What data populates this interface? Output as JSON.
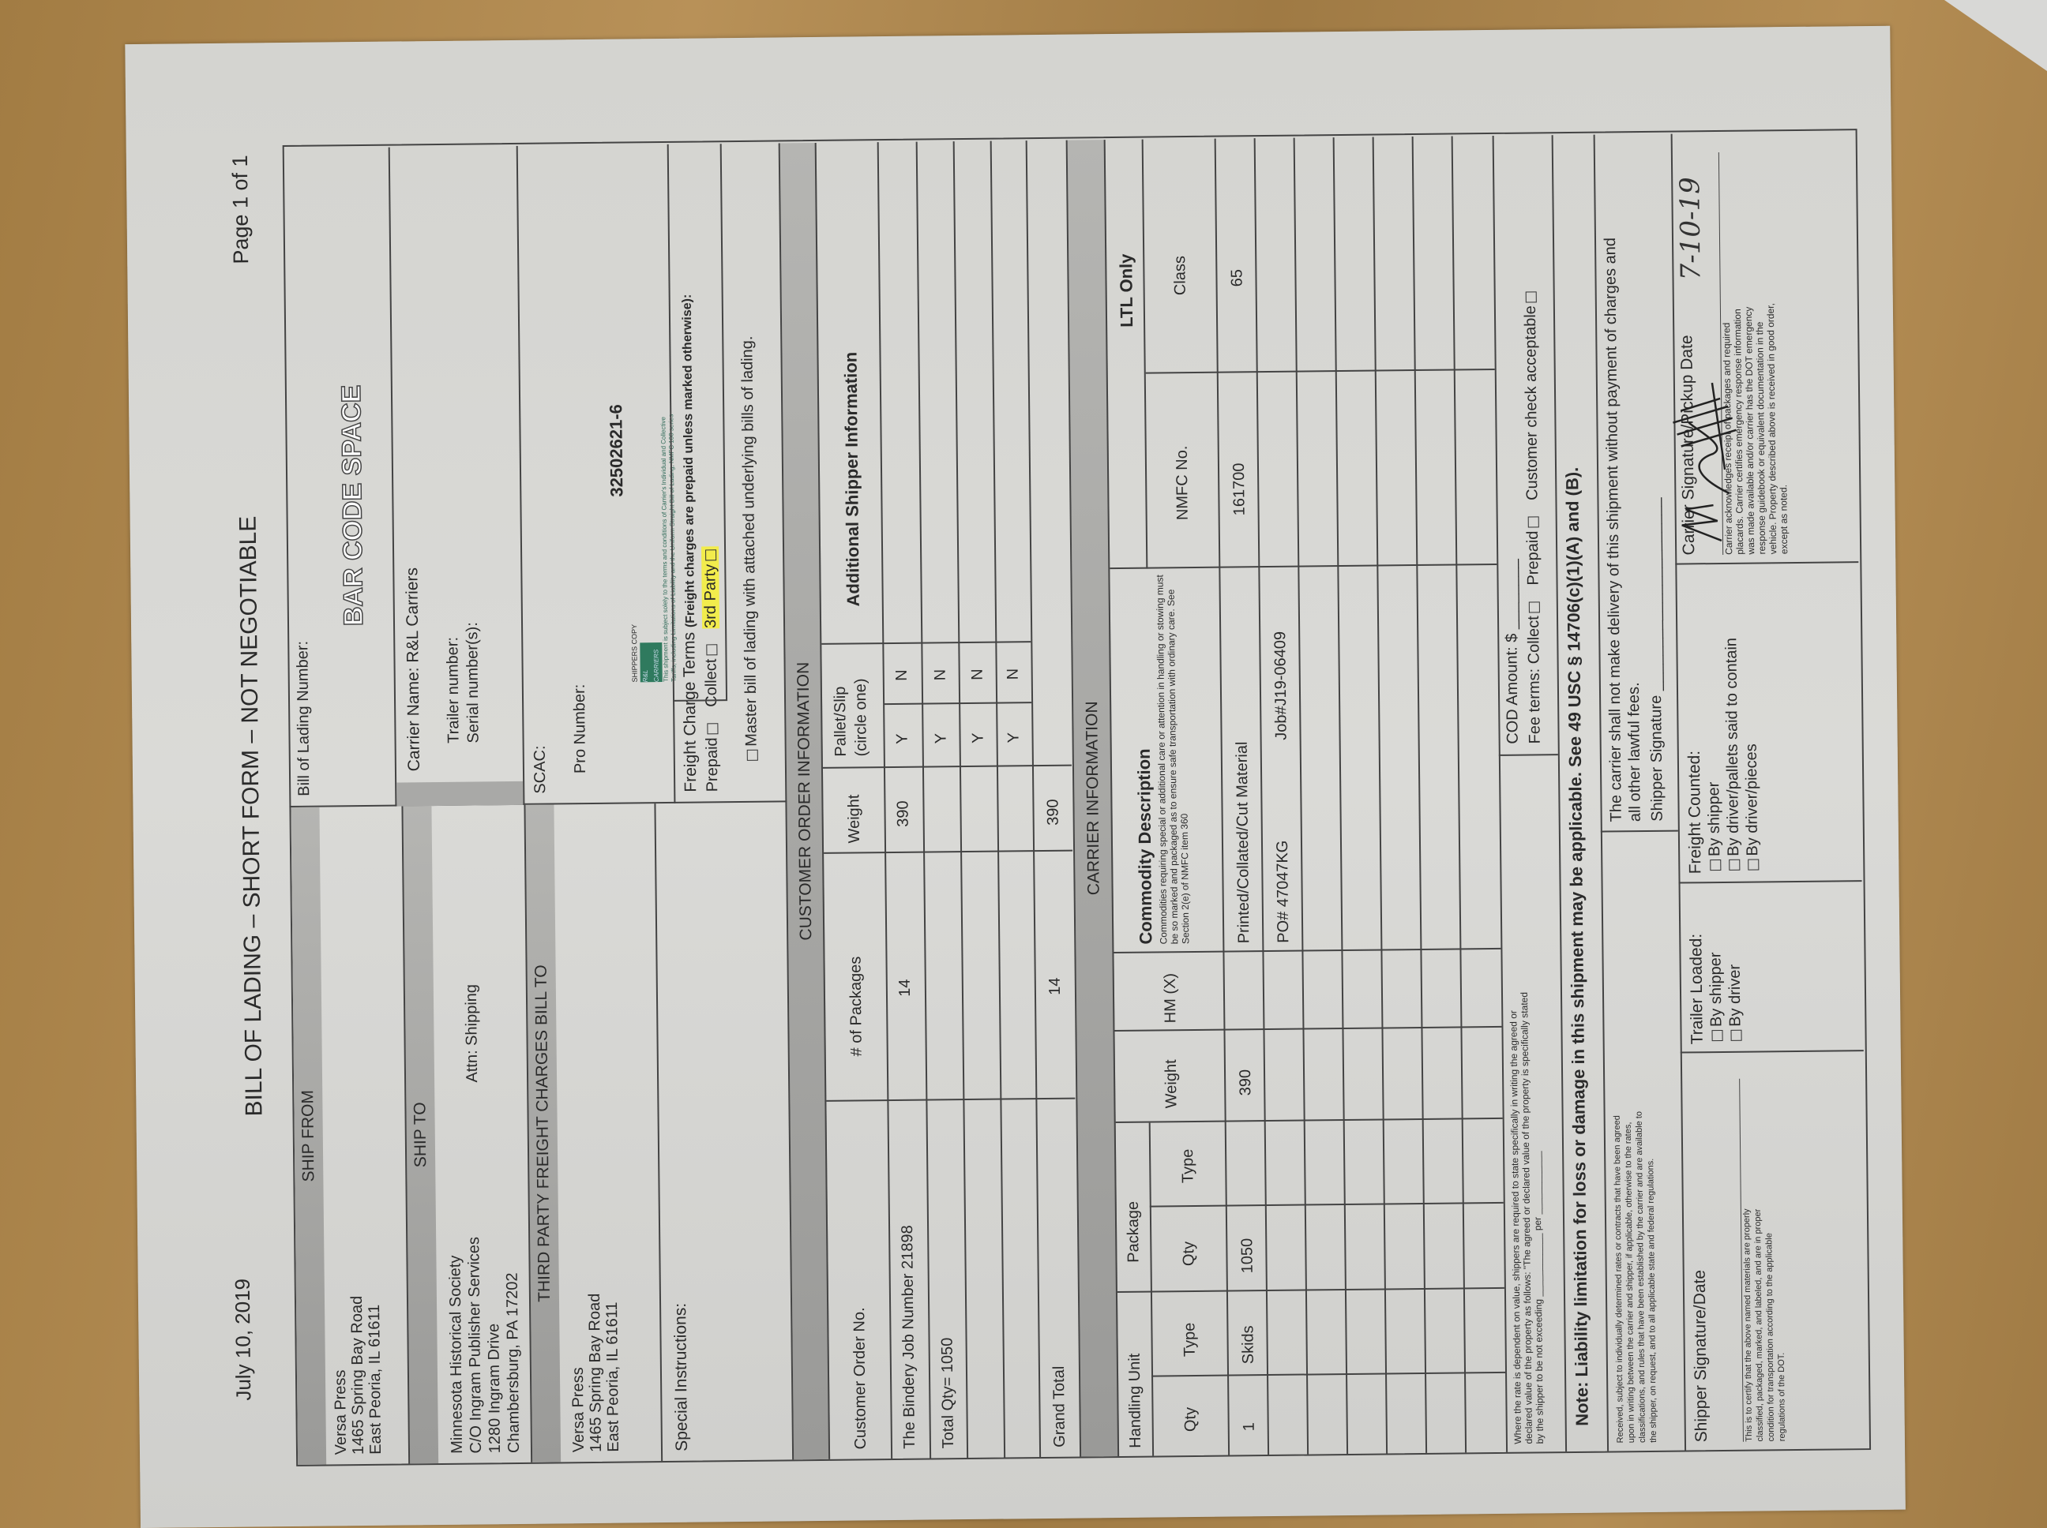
{
  "header": {
    "date": "July 10, 2019",
    "title": "BILL OF LADING – SHORT FORM – NOT NEGOTIABLE",
    "page": "Page 1 of 1"
  },
  "ship_from": {
    "label": "SHIP FROM",
    "lines": [
      "Versa Press",
      "1465 Spring Bay Road",
      "East Peoria, IL 61611"
    ]
  },
  "ship_to": {
    "label": "SHIP TO",
    "lines": [
      "Minnesota Historical Society",
      "C/O Ingram Publisher Services",
      "1280 Ingram Drive",
      "Chambersburg, PA 17202"
    ],
    "attn": "Attn: Shipping"
  },
  "third_party": {
    "label": "THIRD PARTY FREIGHT CHARGES BILL TO",
    "lines": [
      "Versa Press",
      "1465 Spring Bay Road",
      "East Peoria, IL 61611"
    ]
  },
  "special_instructions": {
    "label": "Special Instructions:"
  },
  "bol": {
    "label": "Bill of Lading Number:",
    "barcode": "BAR CODE SPACE"
  },
  "carrier": {
    "name_label": "Carrier Name: R&L Carriers",
    "trailer": "Trailer number:",
    "serial": "Serial number(s):"
  },
  "scac": {
    "label": "SCAC:",
    "pro_label": "Pro Number:",
    "pro_number": "32502621-6",
    "stamp": {
      "copy": "SHIPPERS COPY",
      "brand": "R&L CARRIERS",
      "line1": "This shipment is subject solely to the terms and conditions of Carrier's Individual and Collective",
      "line2": "Tariffs, including Limitations of Liability and the Uniform Straight Bill of Lading, NMFC 100 series"
    }
  },
  "freight_terms": {
    "label": "Freight Charge Terms",
    "note": "(Freight charges are prepaid unless marked otherwise):",
    "prepaid": "Prepaid",
    "collect": "Collect",
    "third": "3rd Party",
    "master": "Master bill of lading with attached underlying bills of lading."
  },
  "customer_order": {
    "title": "CUSTOMER ORDER INFORMATION",
    "columns": [
      "Customer Order No.",
      "# of Packages",
      "Weight",
      "Pallet/Slip",
      "(circle one)",
      "Additional Shipper Information"
    ],
    "rows": [
      {
        "order": "The Bindery Job Number 21898",
        "packages": "14",
        "weight": "390",
        "y": "Y",
        "n": "N"
      },
      {
        "order": "Total Qty= 1050",
        "packages": "",
        "weight": "",
        "y": "Y",
        "n": "N"
      },
      {
        "order": "",
        "packages": "",
        "weight": "",
        "y": "Y",
        "n": "N"
      },
      {
        "order": "",
        "packages": "",
        "weight": "",
        "y": "Y",
        "n": "N"
      }
    ],
    "grand_total": {
      "label": "Grand Total",
      "packages": "14",
      "weight": "390"
    }
  },
  "carrier_info": {
    "title": "CARRIER INFORMATION",
    "handling_unit": "Handling Unit",
    "package": "Package",
    "qty": "Qty",
    "type": "Type",
    "weight": "Weight",
    "hm": "HM (X)",
    "commodity": "Commodity Description",
    "commodity_note": "Commodities requiring special or additional care or attention in handling or stowing must be so marked and packaged as to ensure safe transportation with ordinary care. See Section 2(e) of NMFC item 360",
    "ltl": "LTL Only",
    "nmfc": "NMFC No.",
    "class": "Class",
    "row": {
      "hu_qty": "1",
      "hu_type": "Skids",
      "pkg_qty": "1050",
      "weight": "390",
      "desc": "Printed/Collated/Cut Material",
      "po": "PO# 47047KG",
      "job": "Job#J19-06409",
      "nmfc": "161700",
      "class": "65"
    }
  },
  "value_note": {
    "text1": "Where the rate is dependent on value, shippers are required to state specifically in writing the agreed or",
    "text2": "declared value of the property as follows: \"The agreed or declared value of the property is specifically stated",
    "text3": "by the shipper to be not exceeding",
    "per": "per"
  },
  "cod": {
    "amount": "COD Amount: $",
    "fee": "Fee terms: Collect",
    "prepaid": "Prepaid",
    "check": "Customer check acceptable"
  },
  "liability": "Note: Liability limitation for loss or damage in this shipment may be applicable. See 49 USC § 14706(c)(1)(A) and (B).",
  "received": {
    "lines": [
      "Received, subject to individually determined rates or contracts that have been agreed",
      "upon in writing between the carrier and shipper, if applicable, otherwise to the rates,",
      "classifications, and rules that have been established by the carrier and are available to",
      "the shipper, on request, and to all applicable state and federal regulations."
    ]
  },
  "delivery": {
    "line1": "The carrier shall not make delivery of this shipment without payment of charges and",
    "line2": "all other lawful fees.",
    "sig": "Shipper Signature"
  },
  "shipper_sig": {
    "label": "Shipper Signature/Date",
    "lines": [
      "This is to certify that the above named materials are properly",
      "classified, packaged, marked, and labeled, and are in proper",
      "condition for transportation according to the applicable",
      "regulations of the DOT."
    ]
  },
  "trailer_loaded": {
    "label": "Trailer Loaded:",
    "opts": [
      "By shipper",
      "By driver"
    ]
  },
  "freight_counted": {
    "label": "Freight Counted:",
    "opts": [
      "By shipper",
      "By driver/pallets said to contain",
      "By driver/pieces"
    ]
  },
  "carrier_sig": {
    "label": "Carrier Signature/Pickup Date",
    "date": "7-10-19",
    "lines": [
      "Carrier acknowledges receipt of packages and required",
      "placards. Carrier certifies emergency response information",
      "was made available and/or carrier has the DOT emergency",
      "response guidebook or equivalent documentation in the",
      "vehicle. Property described above is received in good order,",
      "except as noted."
    ]
  },
  "colors": {
    "band": "#a9a9a7",
    "highlight": "#f2ec4c",
    "stamp": "#2f7a5e"
  }
}
